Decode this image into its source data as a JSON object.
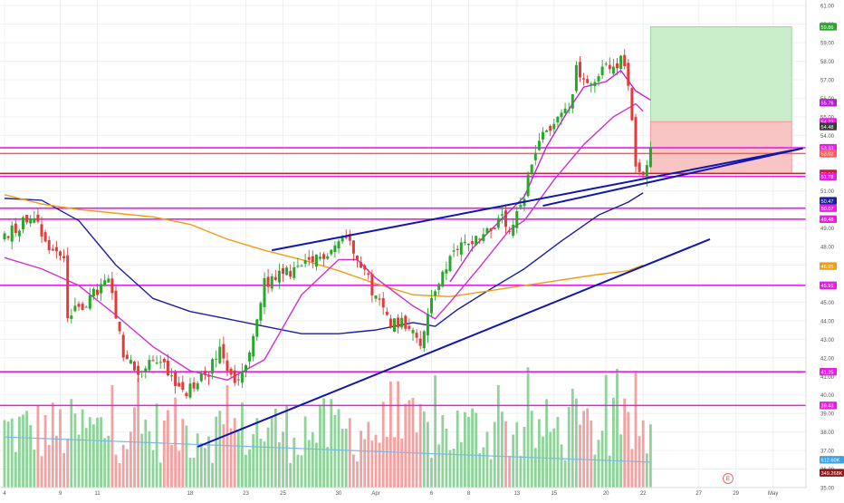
{
  "chart_data": {
    "type": "candlestick",
    "ylim": [
      35.0,
      61.3
    ],
    "grid": true,
    "y_ticks": [
      61.0,
      60.0,
      59.0,
      58.0,
      57.0,
      56.0,
      55.0,
      54.0,
      53.0,
      52.0,
      51.0,
      50.0,
      49.0,
      48.0,
      47.0,
      46.0,
      45.0,
      44.0,
      43.0,
      42.0,
      41.0,
      40.0,
      39.0,
      38.0,
      37.0,
      36.0,
      35.0
    ],
    "x_tick_labels": [
      {
        "label": "4",
        "bar": 0
      },
      {
        "label": "9",
        "bar": 15
      },
      {
        "label": "11",
        "bar": 25
      },
      {
        "label": "18",
        "bar": 50
      },
      {
        "label": "23",
        "bar": 65
      },
      {
        "label": "25",
        "bar": 75
      },
      {
        "label": "30",
        "bar": 90
      },
      {
        "label": "Apr",
        "bar": 100
      },
      {
        "label": "6",
        "bar": 115
      },
      {
        "label": "8",
        "bar": 125
      },
      {
        "label": "13",
        "bar": 138
      },
      {
        "label": "15",
        "bar": 148
      },
      {
        "label": "20",
        "bar": 162
      },
      {
        "label": "22",
        "bar": 172
      },
      {
        "label": "27",
        "bar": 187
      },
      {
        "label": "29",
        "bar": 197
      },
      {
        "label": "May",
        "bar": 207
      }
    ],
    "close_path": [
      [
        0,
        48.6
      ],
      [
        8,
        49.8
      ],
      [
        12,
        47.9
      ],
      [
        16,
        47.5
      ],
      [
        17,
        44.2
      ],
      [
        22,
        45.0
      ],
      [
        28,
        46.2
      ],
      [
        32,
        42.1
      ],
      [
        36,
        41.2
      ],
      [
        42,
        42.0
      ],
      [
        48,
        40.0
      ],
      [
        54,
        41.0
      ],
      [
        58,
        42.3
      ],
      [
        62,
        40.5
      ],
      [
        66,
        42.0
      ],
      [
        70,
        46.0
      ],
      [
        76,
        46.6
      ],
      [
        82,
        47.0
      ],
      [
        88,
        47.9
      ],
      [
        92,
        48.6
      ],
      [
        96,
        47.2
      ],
      [
        100,
        45.2
      ],
      [
        104,
        44.0
      ],
      [
        110,
        43.8
      ],
      [
        112,
        42.4
      ],
      [
        115,
        45.4
      ],
      [
        118,
        46.4
      ],
      [
        122,
        48.0
      ],
      [
        128,
        48.6
      ],
      [
        134,
        49.4
      ],
      [
        136,
        48.6
      ],
      [
        140,
        50.6
      ],
      [
        142,
        52.5
      ],
      [
        144,
        54.0
      ],
      [
        148,
        54.6
      ],
      [
        152,
        55.6
      ],
      [
        154,
        57.5
      ],
      [
        158,
        56.5
      ],
      [
        162,
        57.8
      ],
      [
        166,
        58.0
      ],
      [
        168,
        56.9
      ],
      [
        170,
        52.5
      ],
      [
        172,
        52.2
      ],
      [
        174,
        53.2
      ]
    ],
    "ma_series": [
      {
        "color": "#1b1fa0",
        "points": [
          [
            0,
            50.6
          ],
          [
            10,
            50.5
          ],
          [
            20,
            49.4
          ],
          [
            30,
            47.0
          ],
          [
            40,
            45.2
          ],
          [
            50,
            44.5
          ],
          [
            60,
            44.1
          ],
          [
            70,
            43.7
          ],
          [
            80,
            43.3
          ],
          [
            90,
            43.3
          ],
          [
            100,
            43.5
          ],
          [
            110,
            43.9
          ],
          [
            116,
            43.7
          ],
          [
            122,
            44.6
          ],
          [
            130,
            45.6
          ],
          [
            140,
            46.8
          ],
          [
            150,
            48.3
          ],
          [
            160,
            49.7
          ],
          [
            168,
            50.4
          ],
          [
            172,
            50.9
          ]
        ]
      },
      {
        "color": "#f39c12",
        "points": [
          [
            0,
            50.8
          ],
          [
            10,
            50.3
          ],
          [
            20,
            50.0
          ],
          [
            30,
            49.8
          ],
          [
            40,
            49.6
          ],
          [
            50,
            49.2
          ],
          [
            60,
            48.4
          ],
          [
            70,
            47.8
          ],
          [
            80,
            47.3
          ],
          [
            90,
            46.7
          ],
          [
            100,
            46.0
          ],
          [
            110,
            45.4
          ],
          [
            120,
            45.3
          ],
          [
            130,
            45.6
          ],
          [
            140,
            45.9
          ],
          [
            150,
            46.2
          ],
          [
            160,
            46.5
          ],
          [
            168,
            46.7
          ],
          [
            172,
            47.0
          ]
        ]
      },
      {
        "color": "#d02fd1",
        "points": [
          [
            0,
            47.4
          ],
          [
            10,
            46.8
          ],
          [
            20,
            45.9
          ],
          [
            30,
            44.3
          ],
          [
            40,
            42.6
          ],
          [
            50,
            41.3
          ],
          [
            60,
            40.8
          ],
          [
            70,
            41.9
          ],
          [
            80,
            45.4
          ],
          [
            90,
            47.3
          ],
          [
            95,
            47.3
          ],
          [
            100,
            46.3
          ],
          [
            110,
            44.8
          ],
          [
            116,
            44.1
          ],
          [
            120,
            45.0
          ],
          [
            128,
            46.9
          ],
          [
            136,
            48.9
          ],
          [
            140,
            49.4
          ],
          [
            148,
            51.6
          ],
          [
            156,
            53.5
          ],
          [
            164,
            55.0
          ],
          [
            170,
            55.7
          ],
          [
            172,
            55.3
          ]
        ]
      },
      {
        "color": "#c81ed0",
        "points": [
          [
            120,
            46.1
          ],
          [
            126,
            47.9
          ],
          [
            132,
            49.1
          ],
          [
            140,
            50.7
          ],
          [
            146,
            53.4
          ],
          [
            152,
            55.4
          ],
          [
            156,
            56.6
          ],
          [
            162,
            56.9
          ],
          [
            166,
            57.5
          ],
          [
            170,
            56.4
          ],
          [
            174,
            55.9
          ]
        ]
      }
    ],
    "trend_lines": [
      {
        "color": "#1016b0",
        "from": [
          52,
          37.2
        ],
        "to": [
          190,
          48.4
        ]
      },
      {
        "color": "#1016b0",
        "from": [
          72,
          47.8
        ],
        "to": [
          215,
          53.3
        ]
      },
      {
        "color": "#1016b0",
        "from": [
          145,
          50.2
        ],
        "to": [
          215,
          53.3
        ]
      }
    ],
    "horizontal_levels": [
      {
        "label": "53.33",
        "value": 53.33,
        "color": "#e91ee6"
      },
      {
        "label": "53.02",
        "value": 53.02,
        "color": "#ff5a5a"
      },
      {
        "label": "51.94",
        "value": 51.94,
        "color": "#d81b1b"
      },
      {
        "label": "51.78",
        "value": 51.78,
        "color": "#e91ee6"
      },
      {
        "label": "50.07",
        "value": 50.07,
        "color": "#e91ee6"
      },
      {
        "label": "49.48",
        "value": 49.48,
        "color": "#e91ee6"
      },
      {
        "label": "45.91",
        "value": 45.91,
        "color": "#e91ee6"
      },
      {
        "label": "41.25",
        "value": 41.25,
        "color": "#e91ee6"
      },
      {
        "label": "39.43",
        "value": 39.43,
        "color": "#e91ee6"
      }
    ],
    "position_box": {
      "from_bar": 174,
      "to_bar": 212,
      "target": 59.86,
      "entry": 54.73,
      "stop": 51.94
    },
    "axis_badges": [
      {
        "label": "59.86",
        "value": 59.86,
        "bg": "#27a82a",
        "fg": "#ffffff"
      },
      {
        "label": "55.76",
        "value": 55.76,
        "bg": "#b51cd6",
        "fg": "#ffffff"
      },
      {
        "label": "54.73",
        "value": 54.73,
        "bg": "#e91ee6",
        "fg": "#ffffff"
      },
      {
        "label": "54.48",
        "value": 54.48,
        "bg": "#3b3b3b",
        "fg": "#ffffff"
      },
      {
        "label": "53.33",
        "value": 53.33,
        "bg": "#e91ee6",
        "fg": "#ffffff"
      },
      {
        "label": "53.02",
        "value": 53.02,
        "bg": "#ff5a5a",
        "fg": "#ffffff"
      },
      {
        "label": "51.94",
        "value": 51.94,
        "bg": "#d81b1b",
        "fg": "#ffffff"
      },
      {
        "label": "51.78",
        "value": 51.78,
        "bg": "#e91ee6",
        "fg": "#ffffff"
      },
      {
        "label": "50.47",
        "value": 50.47,
        "bg": "#1b1fa0",
        "fg": "#ffffff"
      },
      {
        "label": "50.07",
        "value": 50.07,
        "bg": "#e91ee6",
        "fg": "#ffffff"
      },
      {
        "label": "49.48",
        "value": 49.48,
        "bg": "#e91ee6",
        "fg": "#ffffff"
      },
      {
        "label": "46.95",
        "value": 46.95,
        "bg": "#f39c12",
        "fg": "#ffffff"
      },
      {
        "label": "45.91",
        "value": 45.91,
        "bg": "#e91ee6",
        "fg": "#ffffff"
      },
      {
        "label": "41.25",
        "value": 41.25,
        "bg": "#e91ee6",
        "fg": "#ffffff"
      },
      {
        "label": "39.43",
        "value": 39.43,
        "bg": "#e91ee6",
        "fg": "#ffffff"
      },
      {
        "label": "612.60K",
        "value": 36.5,
        "bg": "#3fa1e0",
        "fg": "#ffffff"
      },
      {
        "label": "349.268K",
        "value": 35.8,
        "bg": "#8b1a1a",
        "fg": "#ffffff"
      }
    ],
    "volume_band": [
      35.0,
      41.5
    ],
    "volume_avg_color": "#7ab8e6",
    "colors": {
      "up": "#27a82a",
      "down": "#e23b3b",
      "vol_up": "#8fd39a",
      "vol_down": "#f3a1a1",
      "grid": "#eef0f3",
      "axis_text": "#555555",
      "target_zone": "#c9ecc9",
      "stop_zone": "#f8c4c4"
    },
    "earnings_marker": "E"
  }
}
